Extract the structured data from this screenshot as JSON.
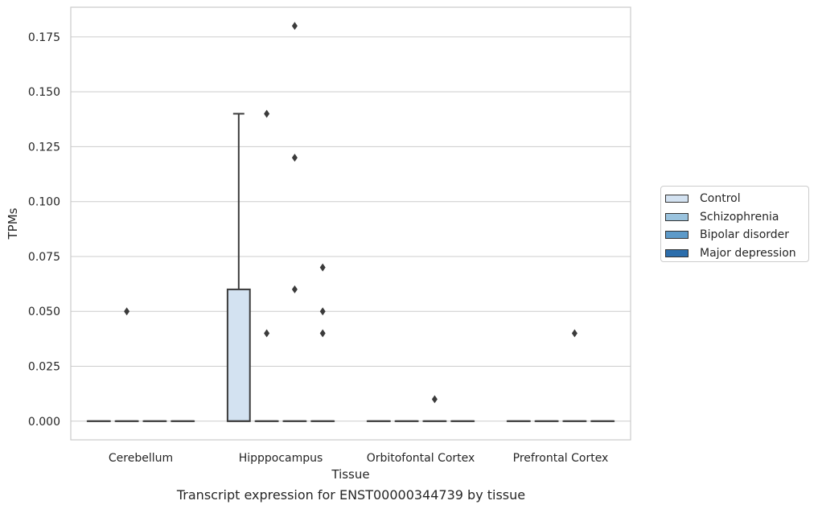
{
  "chart_data": {
    "type": "boxplot",
    "caption": "Transcript expression for ENST00000344739 by tissue",
    "xlabel": "Tissue",
    "ylabel": "TPMs",
    "ylim": [
      -0.0085,
      0.1885
    ],
    "yticks": [
      0.0,
      0.025,
      0.05,
      0.075,
      0.1,
      0.125,
      0.15,
      0.175
    ],
    "ytick_labels": [
      "0.000",
      "0.025",
      "0.050",
      "0.075",
      "0.100",
      "0.125",
      "0.150",
      "0.175"
    ],
    "grid": true,
    "legend_position": "right",
    "categories": [
      "Cerebellum",
      "Hipppocampus",
      "Orbitofontal Cortex",
      "Prefrontal Cortex"
    ],
    "series": [
      {
        "name": "Control",
        "color": "#d3e2f1",
        "boxes": [
          {
            "q1": 0.0,
            "median": 0.0,
            "q3": 0.0,
            "whisker_low": 0.0,
            "whisker_high": 0.0,
            "outliers": []
          },
          {
            "q1": 0.0,
            "median": 0.0,
            "q3": 0.06,
            "whisker_low": 0.0,
            "whisker_high": 0.14,
            "outliers": []
          },
          {
            "q1": 0.0,
            "median": 0.0,
            "q3": 0.0,
            "whisker_low": 0.0,
            "whisker_high": 0.0,
            "outliers": []
          },
          {
            "q1": 0.0,
            "median": 0.0,
            "q3": 0.0,
            "whisker_low": 0.0,
            "whisker_high": 0.0,
            "outliers": []
          }
        ]
      },
      {
        "name": "Schizophrenia",
        "color": "#9ac3de",
        "boxes": [
          {
            "q1": 0.0,
            "median": 0.0,
            "q3": 0.0,
            "whisker_low": 0.0,
            "whisker_high": 0.0,
            "outliers": [
              0.05
            ]
          },
          {
            "q1": 0.0,
            "median": 0.0,
            "q3": 0.0,
            "whisker_low": 0.0,
            "whisker_high": 0.0,
            "outliers": [
              0.14,
              0.04
            ]
          },
          {
            "q1": 0.0,
            "median": 0.0,
            "q3": 0.0,
            "whisker_low": 0.0,
            "whisker_high": 0.0,
            "outliers": []
          },
          {
            "q1": 0.0,
            "median": 0.0,
            "q3": 0.0,
            "whisker_low": 0.0,
            "whisker_high": 0.0,
            "outliers": []
          }
        ]
      },
      {
        "name": "Bipolar disorder",
        "color": "#5d9ac9",
        "boxes": [
          {
            "q1": 0.0,
            "median": 0.0,
            "q3": 0.0,
            "whisker_low": 0.0,
            "whisker_high": 0.0,
            "outliers": []
          },
          {
            "q1": 0.0,
            "median": 0.0,
            "q3": 0.0,
            "whisker_low": 0.0,
            "whisker_high": 0.0,
            "outliers": [
              0.18,
              0.12,
              0.06
            ]
          },
          {
            "q1": 0.0,
            "median": 0.0,
            "q3": 0.0,
            "whisker_low": 0.0,
            "whisker_high": 0.0,
            "outliers": [
              0.01
            ]
          },
          {
            "q1": 0.0,
            "median": 0.0,
            "q3": 0.0,
            "whisker_low": 0.0,
            "whisker_high": 0.0,
            "outliers": [
              0.04
            ]
          }
        ]
      },
      {
        "name": "Major depression",
        "color": "#2c6eac",
        "boxes": [
          {
            "q1": 0.0,
            "median": 0.0,
            "q3": 0.0,
            "whisker_low": 0.0,
            "whisker_high": 0.0,
            "outliers": []
          },
          {
            "q1": 0.0,
            "median": 0.0,
            "q3": 0.0,
            "whisker_low": 0.0,
            "whisker_high": 0.0,
            "outliers": [
              0.07,
              0.05,
              0.04
            ]
          },
          {
            "q1": 0.0,
            "median": 0.0,
            "q3": 0.0,
            "whisker_low": 0.0,
            "whisker_high": 0.0,
            "outliers": []
          },
          {
            "q1": 0.0,
            "median": 0.0,
            "q3": 0.0,
            "whisker_low": 0.0,
            "whisker_high": 0.0,
            "outliers": []
          }
        ]
      }
    ]
  }
}
